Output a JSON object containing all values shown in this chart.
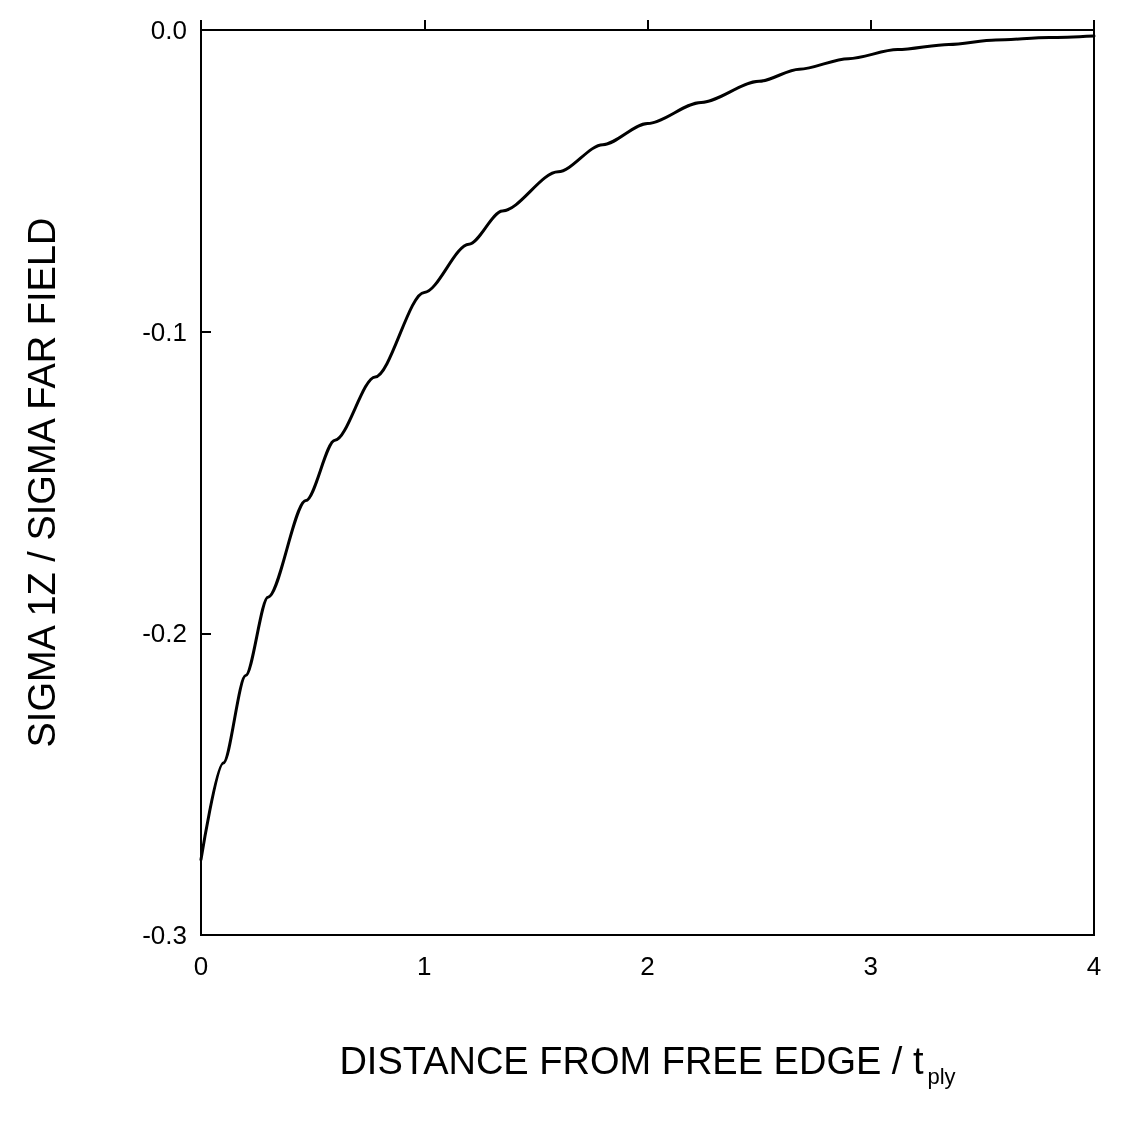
{
  "chart_data": {
    "type": "line",
    "xlabel": "DISTANCE FROM FREE EDGE / t$_{ply}$",
    "ylabel": "SIGMA 1Z / SIGMA FAR FIELD",
    "series": [
      {
        "color": "#000000",
        "x": [
          0,
          0.1,
          0.2,
          0.3,
          0.47,
          0.6,
          0.78,
          1.0,
          1.2,
          1.35,
          1.6,
          1.8,
          2.0,
          2.24,
          2.5,
          2.68,
          2.9,
          3.12,
          3.35,
          3.56,
          3.8,
          4.0
        ],
        "values": [
          -0.275,
          -0.243,
          -0.214,
          -0.188,
          -0.156,
          -0.136,
          -0.115,
          -0.087,
          -0.071,
          -0.06,
          -0.047,
          -0.038,
          -0.031,
          -0.024,
          -0.017,
          -0.013,
          -0.0095,
          -0.0065,
          -0.0048,
          -0.0033,
          -0.0025,
          -0.002
        ]
      }
    ],
    "xlim": [
      0,
      4
    ],
    "ylim": [
      -0.3,
      0
    ],
    "xticks": [
      0,
      1,
      2,
      3,
      4
    ],
    "yticks": [
      {
        "value": -0.3,
        "label": "-0.3"
      },
      {
        "value": -0.2,
        "label": "-0.2"
      },
      {
        "value": -0.1,
        "label": "-0.1"
      },
      {
        "value": 0,
        "label": "0.0"
      }
    ],
    "grid": false,
    "marker": "none",
    "line_style": "solid"
  }
}
